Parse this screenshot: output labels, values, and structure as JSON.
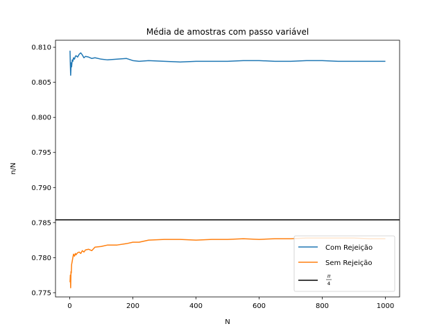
{
  "chart_data": {
    "type": "line",
    "title": "Média de amostras com passo variável",
    "xlabel": "N",
    "ylabel": "n/N",
    "xlim": [
      -45,
      1045
    ],
    "ylim": [
      0.7744,
      0.811
    ],
    "xticks": [
      0,
      200,
      400,
      600,
      800,
      1000
    ],
    "xtick_labels": [
      "0",
      "200",
      "400",
      "600",
      "800",
      "1000"
    ],
    "yticks": [
      0.775,
      0.78,
      0.785,
      0.79,
      0.795,
      0.8,
      0.805,
      0.81
    ],
    "ytick_labels": [
      "0.775",
      "0.780",
      "0.785",
      "0.790",
      "0.795",
      "0.800",
      "0.805",
      "0.810"
    ],
    "grid": false,
    "legend_position": "lower-right",
    "series": [
      {
        "name": "Com Rejeição",
        "color": "#1f77b4",
        "x": [
          1,
          2,
          3,
          4,
          5,
          6,
          8,
          10,
          12,
          15,
          18,
          20,
          25,
          30,
          35,
          40,
          45,
          50,
          60,
          70,
          80,
          100,
          120,
          150,
          180,
          200,
          220,
          250,
          300,
          350,
          400,
          450,
          500,
          550,
          600,
          650,
          700,
          750,
          800,
          850,
          900,
          950,
          1000
        ],
        "values": [
          0.8095,
          0.8075,
          0.806,
          0.807,
          0.8078,
          0.8072,
          0.8082,
          0.808,
          0.8085,
          0.8083,
          0.8087,
          0.8088,
          0.8086,
          0.809,
          0.8092,
          0.8089,
          0.8085,
          0.8087,
          0.8086,
          0.8084,
          0.8085,
          0.8083,
          0.8082,
          0.8083,
          0.8084,
          0.8081,
          0.808,
          0.8081,
          0.808,
          0.8079,
          0.808,
          0.808,
          0.808,
          0.8081,
          0.8081,
          0.808,
          0.808,
          0.8081,
          0.8081,
          0.808,
          0.808,
          0.808,
          0.808
        ]
      },
      {
        "name": "Sem Rejeição",
        "color": "#ff7f0e",
        "x": [
          1,
          2,
          3,
          4,
          5,
          6,
          8,
          10,
          12,
          15,
          18,
          20,
          25,
          30,
          35,
          40,
          45,
          50,
          60,
          70,
          80,
          100,
          120,
          150,
          180,
          200,
          220,
          250,
          300,
          350,
          400,
          450,
          500,
          550,
          600,
          650,
          700,
          750,
          800,
          850,
          900,
          950,
          1000
        ],
        "values": [
          0.7765,
          0.7775,
          0.7757,
          0.778,
          0.7778,
          0.779,
          0.7795,
          0.78,
          0.7805,
          0.7802,
          0.7806,
          0.7804,
          0.7807,
          0.7808,
          0.7806,
          0.781,
          0.7808,
          0.7811,
          0.7812,
          0.781,
          0.7815,
          0.7816,
          0.7818,
          0.7818,
          0.782,
          0.7822,
          0.7822,
          0.7825,
          0.7826,
          0.7826,
          0.7825,
          0.7826,
          0.7826,
          0.7827,
          0.7826,
          0.7827,
          0.7827,
          0.7828,
          0.7828,
          0.7828,
          0.7828,
          0.7827,
          0.7827
        ]
      }
    ],
    "hlines": [
      {
        "name": "π/4",
        "label_num": "π",
        "label_den": "4",
        "y": 0.785398,
        "color": "#000000"
      }
    ]
  }
}
